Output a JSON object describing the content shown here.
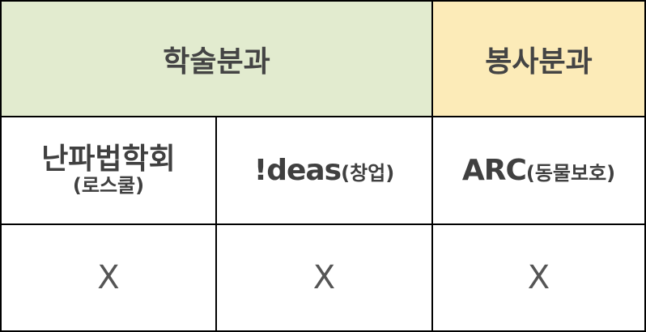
{
  "colors": {
    "academic_header_bg": "#e2ebcf",
    "volunteer_header_bg": "#fcebb8",
    "grid_line": "#000000",
    "text": "#404040"
  },
  "headers": {
    "academic": "학술분과",
    "volunteer": "봉사분과"
  },
  "clubs": [
    {
      "name": "난파법학회",
      "note": "(로스쿨)"
    },
    {
      "name": "!deas",
      "note": "(창업)"
    },
    {
      "name": "ARC",
      "note": "(동물보호)"
    }
  ],
  "statuses": [
    "X",
    "X",
    "X"
  ]
}
